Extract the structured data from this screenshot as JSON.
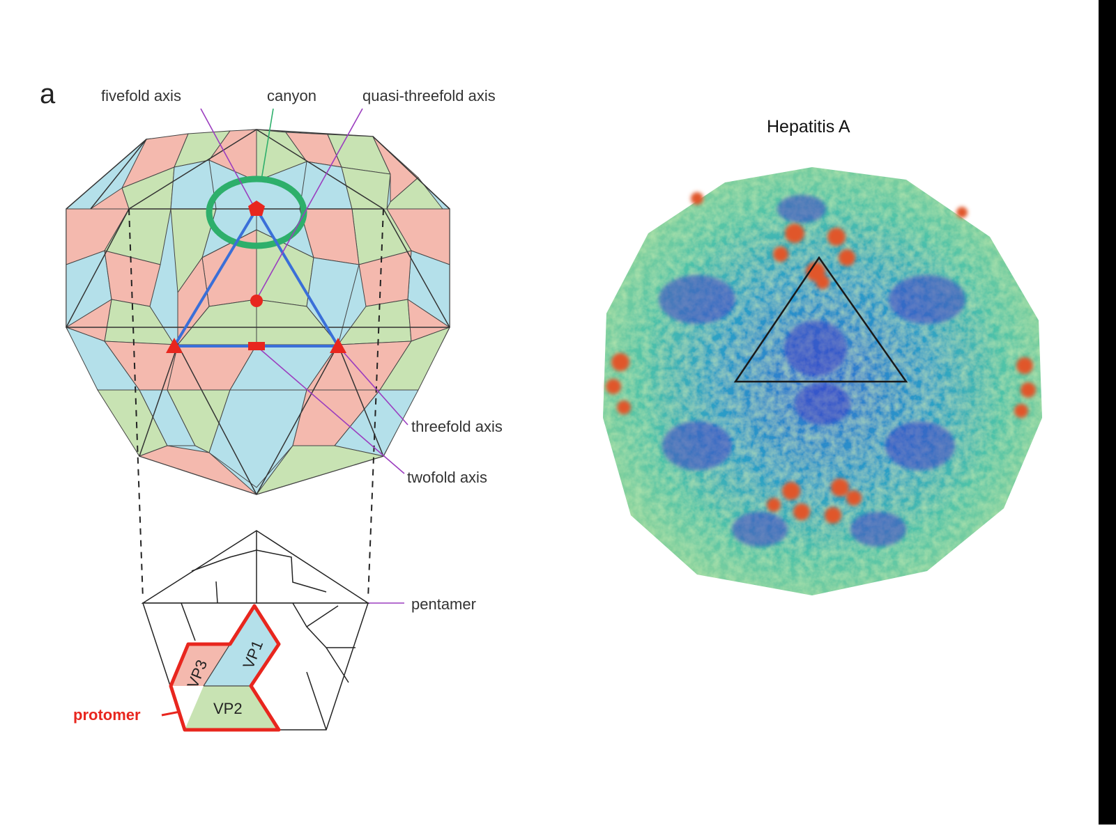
{
  "panel_a": {
    "panel_letter": "a",
    "labels": {
      "fivefold_axis": "fivefold axis",
      "canyon": "canyon",
      "quasi_threefold_axis": "quasi-threefold axis",
      "threefold_axis": "threefold axis",
      "twofold_axis": "twofold axis",
      "pentamer": "pentamer",
      "protomer": "protomer",
      "vp1": "VP1",
      "vp2": "VP2",
      "vp3": "VP3"
    }
  },
  "panel_b": {
    "title": "Hepatitis A"
  },
  "colors": {
    "pink": "#f4b9ae",
    "green": "#c8e3b3",
    "blue": "#b4e0ea",
    "axis_marker_red": "#e8261e",
    "triangle_blue": "#3a6fd8",
    "canyon_green": "#2eaf6b",
    "leader_purple": "#9b3dbf"
  }
}
